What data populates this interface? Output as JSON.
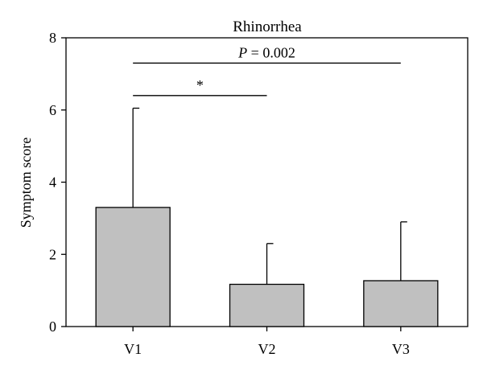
{
  "chart_data": {
    "type": "bar",
    "title": "Rhinorrhea",
    "xlabel": "",
    "ylabel": "Symptom score",
    "categories": [
      "V1",
      "V2",
      "V3"
    ],
    "values": [
      3.3,
      1.17,
      1.27
    ],
    "error_upper": [
      6.05,
      2.3,
      2.9
    ],
    "ylim": [
      0,
      8
    ],
    "yticks": [
      0,
      2,
      4,
      6,
      8
    ],
    "grid": false,
    "bar_color": "#c0c0c0",
    "annotations": [
      {
        "from": "V1",
        "to": "V3",
        "y": 7.3,
        "label_italic": "P",
        "label_rest": " = 0.002"
      },
      {
        "from": "V1",
        "to": "V2",
        "y": 6.4,
        "label_italic": "",
        "label_rest": "*"
      }
    ]
  }
}
